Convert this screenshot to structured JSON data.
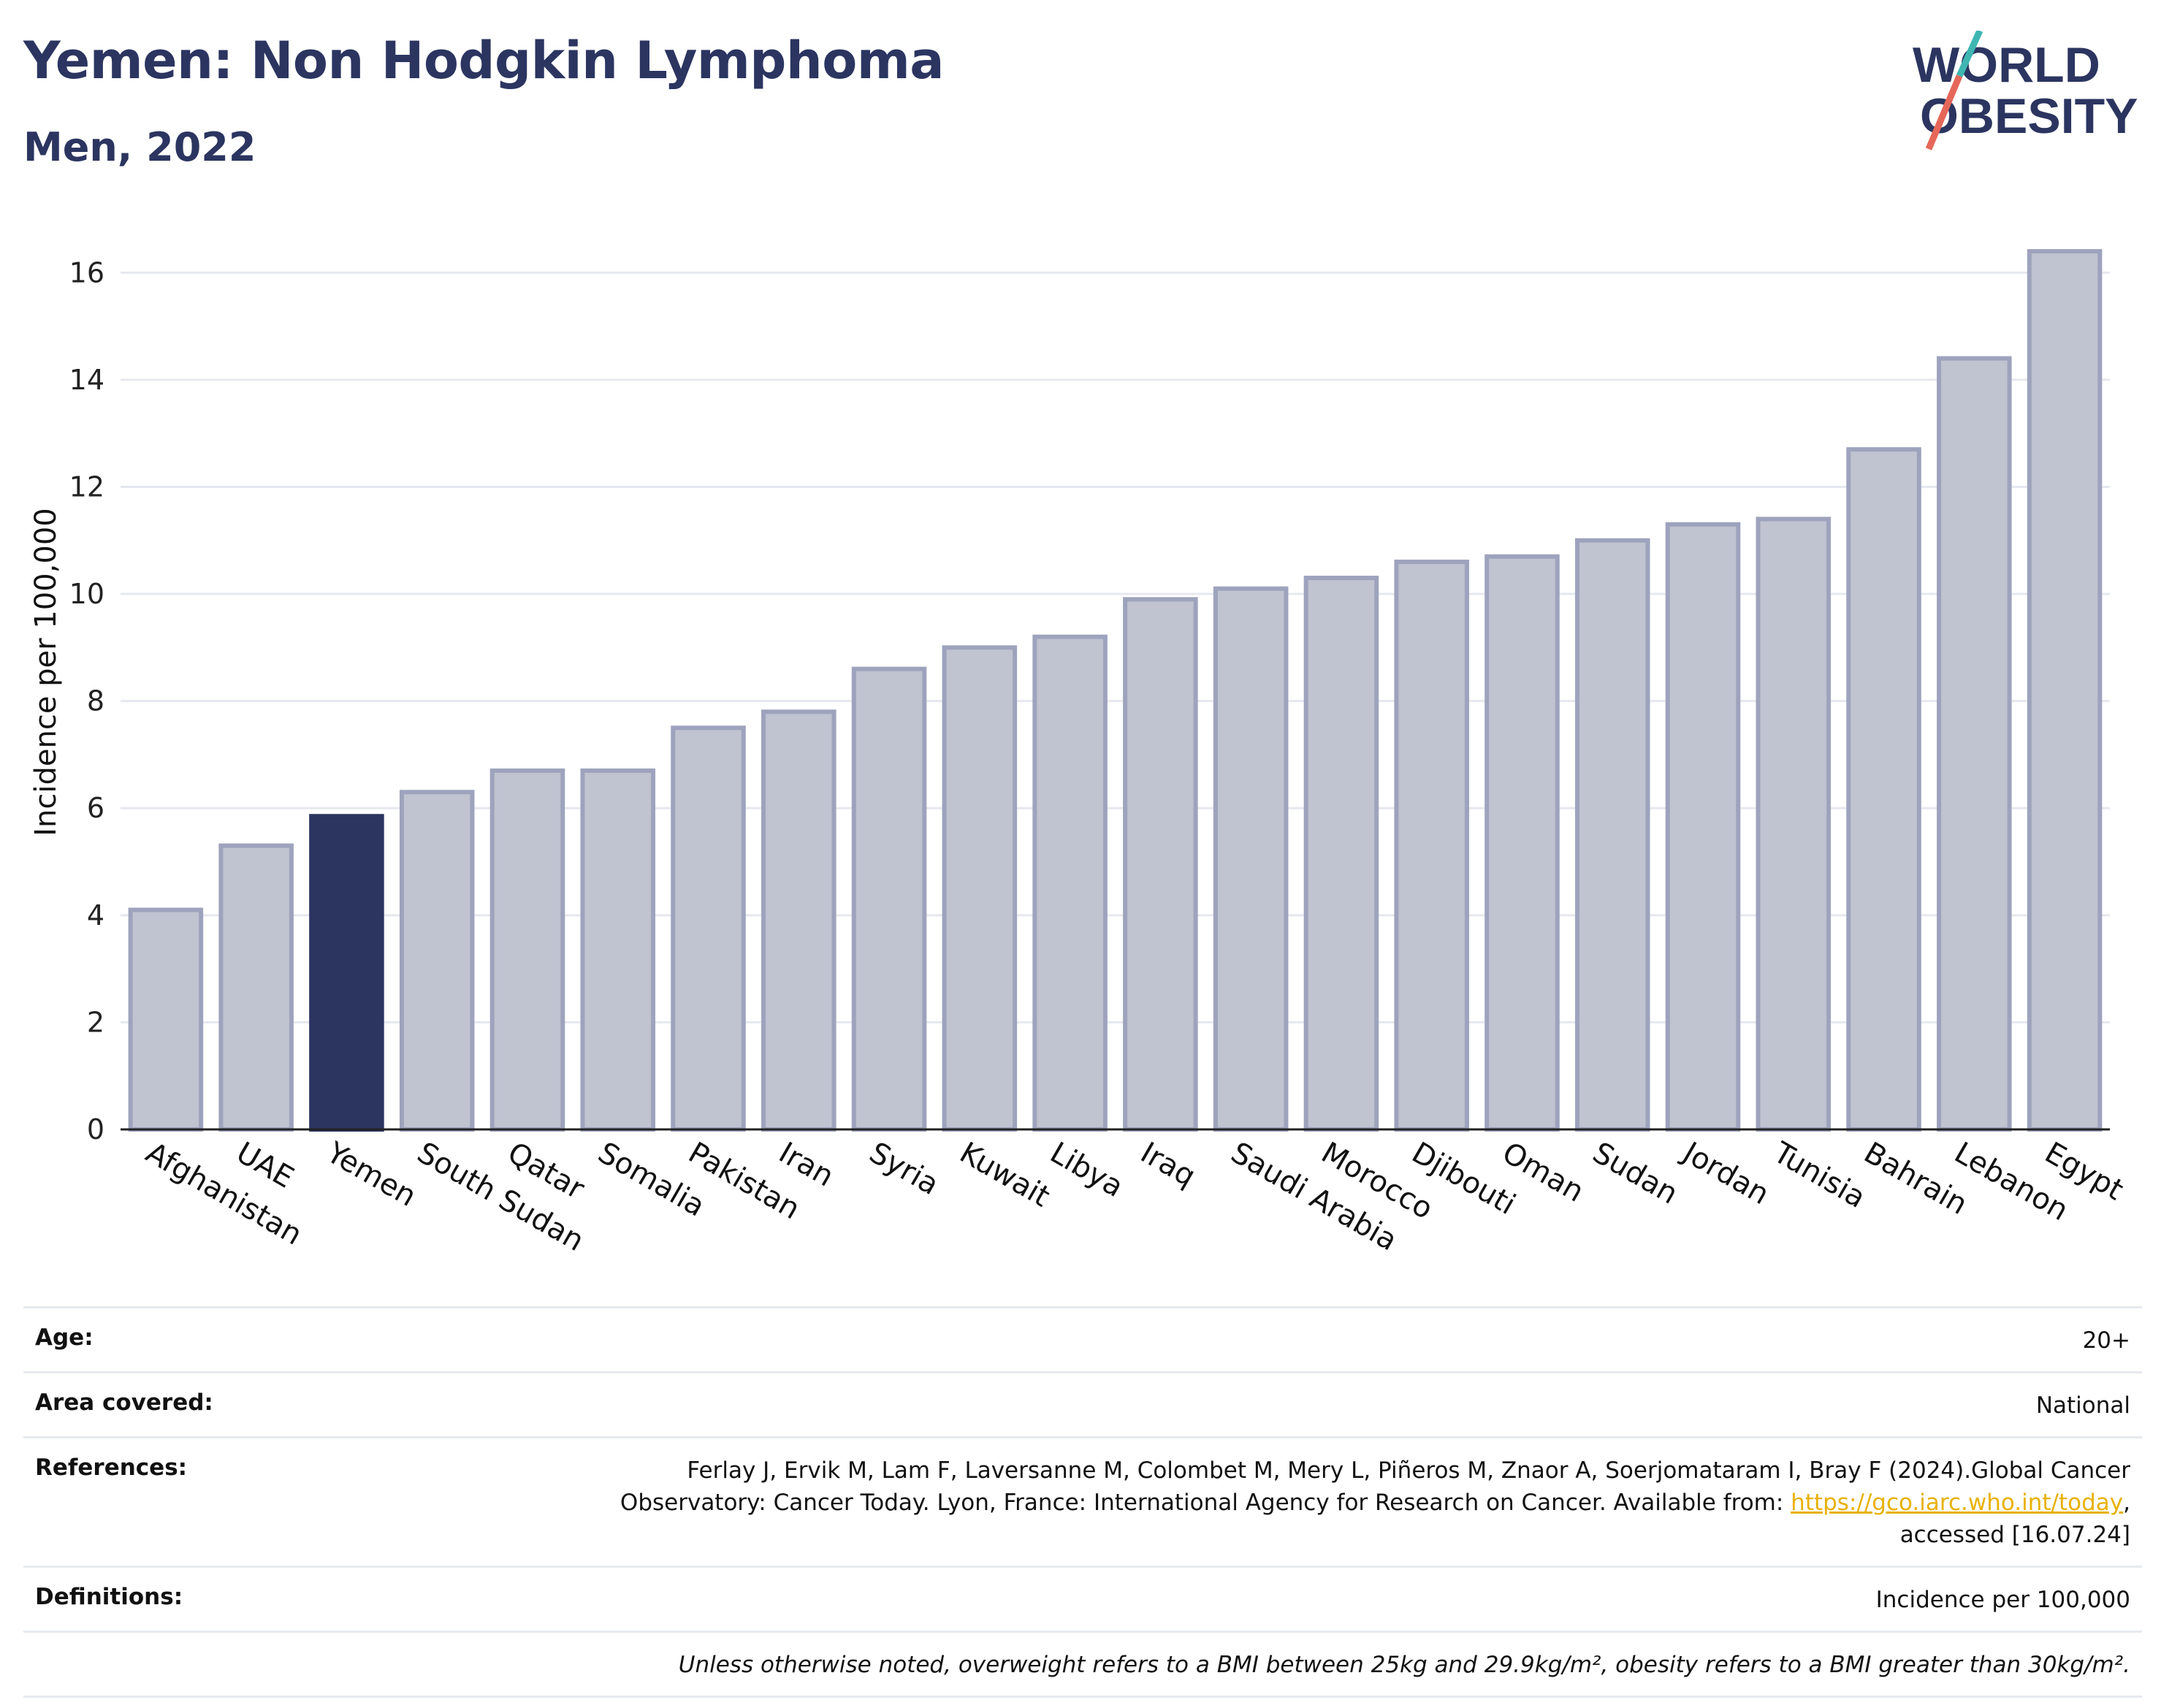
{
  "header": {
    "title": "Yemen: Non Hodgkin Lymphoma",
    "subtitle": "Men, 2022",
    "logo_line1": "WORLD",
    "logo_line2": "OBESITY"
  },
  "colors": {
    "bar_default": "#c0c3d0",
    "bar_default_stroke": "#9ea3bd",
    "bar_highlight": "#2b3560",
    "title": "#2b3560",
    "logo_slash_teal": "#3fb6b2",
    "logo_slash_red": "#e5675a",
    "link": "#e8b100"
  },
  "chart_data": {
    "type": "bar",
    "ylabel": "Incidence per 100,000",
    "xlabel": "",
    "ylim": [
      0,
      17
    ],
    "yticks": [
      0,
      2,
      4,
      6,
      8,
      10,
      12,
      14,
      16
    ],
    "grid": true,
    "highlight": "Yemen",
    "categories": [
      "Afghanistan",
      "UAE",
      "Yemen",
      "South Sudan",
      "Qatar",
      "Somalia",
      "Pakistan",
      "Iran",
      "Syria",
      "Kuwait",
      "Libya",
      "Iraq",
      "Saudi Arabia",
      "Morocco",
      "Djibouti",
      "Oman",
      "Sudan",
      "Jordan",
      "Tunisia",
      "Bahrain",
      "Lebanon",
      "Egypt"
    ],
    "values": [
      4.1,
      5.3,
      5.85,
      6.3,
      6.7,
      6.7,
      7.5,
      7.8,
      8.6,
      9.0,
      9.2,
      9.9,
      10.1,
      10.3,
      10.6,
      10.7,
      11.0,
      11.3,
      11.4,
      12.7,
      14.4,
      16.4
    ]
  },
  "meta": {
    "age_label": "Age:",
    "age_value": "20+",
    "area_label": "Area covered:",
    "area_value": "National",
    "references_label": "References:",
    "references_line1": "Ferlay J, Ervik M, Lam F, Laversanne M, Colombet M, Mery L, Piñeros M, Znaor A, Soerjomataram I, Bray F (2024).Global Cancer",
    "references_line2": "Observatory: Cancer Today. Lyon, France: International Agency for Research on Cancer. Available from: ",
    "references_link": "https://gco.iarc.who.int/today",
    "references_line2_end": ",",
    "references_line3": "accessed [16.07.24]",
    "definitions_label": "Definitions:",
    "definitions_value": "Incidence per 100,000",
    "note": "Unless otherwise noted, overweight refers to a BMI between 25kg and 29.9kg/m², obesity refers to a BMI greater than 30kg/m²."
  }
}
